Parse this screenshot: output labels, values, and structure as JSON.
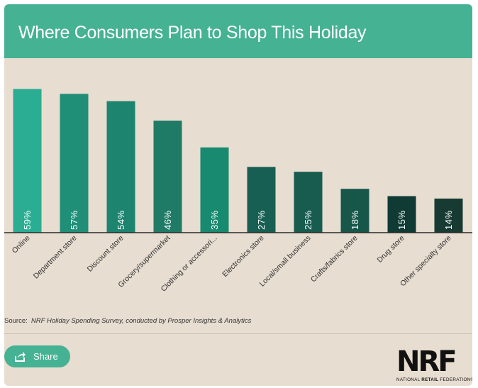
{
  "header": {
    "title": "Where Consumers Plan to Shop This Holiday"
  },
  "chart_data": {
    "type": "bar",
    "categories": [
      "Online",
      "Department store",
      "Discount store",
      "Grocery/supermarket",
      "Clothing or accessori...",
      "Electronics store",
      "Local/small business",
      "Crafts/fabrics store",
      "Drug store",
      "Other specialty store"
    ],
    "values": [
      59,
      57,
      54,
      46,
      35,
      27,
      25,
      18,
      15,
      14
    ],
    "value_labels": [
      "59%",
      "57%",
      "54%",
      "46%",
      "35%",
      "27%",
      "25%",
      "18%",
      "15%",
      "14%"
    ],
    "ylim": [
      0,
      60
    ],
    "grid": false,
    "colors": [
      "#2aad92",
      "#1f8f78",
      "#1d8470",
      "#1f7a66",
      "#188a6f",
      "#175f52",
      "#185c50",
      "#17574a",
      "#0f3b34",
      "#173b33"
    ]
  },
  "source": {
    "label": "Source:",
    "text": "NRF Holiday Spending Survey, conducted by Prosper Insights & Analytics"
  },
  "share": {
    "label": "Share",
    "icon": "share-icon"
  },
  "logo": {
    "word": "NRF",
    "sub_pre": "NATIONAL ",
    "sub_bold": "RETAIL",
    "sub_post": " FEDERATION",
    "reg": "®"
  }
}
